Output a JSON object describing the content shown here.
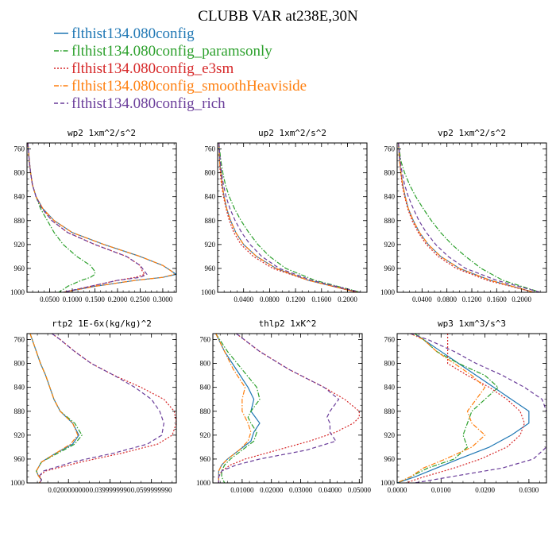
{
  "figure_title": "CLUBB VAR at238E,30N",
  "legend": [
    {
      "label": "flthist134.080config",
      "color": "#1f77b4",
      "dash": "solid"
    },
    {
      "label": "flthist134.080config_paramsonly",
      "color": "#2ca02c",
      "dash": "dashdot"
    },
    {
      "label": "flthist134.080config_e3sm",
      "color": "#d62728",
      "dash": "dotted"
    },
    {
      "label": "flthist134.080config_smoothHeaviside",
      "color": "#ff7f0e",
      "dash": "dashdot"
    },
    {
      "label": "flthist134.080config_rich",
      "color": "#6a3d9a",
      "dash": "dashed"
    }
  ],
  "chart_data": [
    {
      "type": "line",
      "title": "wp2  1xm^2/s^2",
      "xlim": [
        0,
        0.33
      ],
      "ylim": [
        1000,
        750
      ],
      "xticks": [
        0.05,
        0.1,
        0.15,
        0.2,
        0.25,
        0.3
      ],
      "xticklabels": [
        "0.0500",
        "0.1000",
        "0.1500",
        "0.2000",
        "0.2500",
        "0.3000"
      ],
      "yticks": [
        760,
        800,
        840,
        880,
        920,
        960,
        1000
      ],
      "yticklabels": [
        "760",
        "800",
        "840",
        "880",
        "920",
        "960",
        "1000"
      ],
      "y": [
        750,
        760,
        780,
        800,
        820,
        840,
        860,
        880,
        900,
        920,
        940,
        955,
        965,
        970,
        975,
        980,
        990,
        1000
      ],
      "series": [
        {
          "values": [
            0.002,
            0.003,
            0.005,
            0.008,
            0.012,
            0.02,
            0.035,
            0.06,
            0.1,
            0.17,
            0.25,
            0.3,
            0.32,
            0.33,
            0.3,
            0.24,
            0.15,
            0.08
          ]
        },
        {
          "values": [
            0.002,
            0.003,
            0.005,
            0.008,
            0.012,
            0.02,
            0.03,
            0.045,
            0.06,
            0.08,
            0.11,
            0.14,
            0.15,
            0.15,
            0.14,
            0.12,
            0.09,
            0.07
          ]
        },
        {
          "values": [
            0.002,
            0.003,
            0.005,
            0.008,
            0.012,
            0.02,
            0.035,
            0.055,
            0.09,
            0.15,
            0.22,
            0.25,
            0.255,
            0.26,
            0.24,
            0.2,
            0.14,
            0.08
          ]
        },
        {
          "values": [
            0.002,
            0.003,
            0.005,
            0.008,
            0.012,
            0.02,
            0.035,
            0.06,
            0.1,
            0.17,
            0.25,
            0.3,
            0.32,
            0.325,
            0.3,
            0.24,
            0.15,
            0.08
          ]
        },
        {
          "values": [
            0.002,
            0.003,
            0.005,
            0.008,
            0.012,
            0.02,
            0.033,
            0.055,
            0.09,
            0.15,
            0.22,
            0.25,
            0.26,
            0.265,
            0.25,
            0.2,
            0.14,
            0.08
          ]
        }
      ]
    },
    {
      "type": "line",
      "title": "up2  1xm^2/s^2",
      "xlim": [
        0,
        0.23
      ],
      "ylim": [
        1000,
        750
      ],
      "xticks": [
        0.04,
        0.08,
        0.12,
        0.16,
        0.2
      ],
      "xticklabels": [
        "0.0400",
        "0.0800",
        "0.1200",
        "0.1600",
        "0.2000"
      ],
      "yticks": [
        760,
        800,
        840,
        880,
        920,
        960,
        1000
      ],
      "yticklabels": [
        "760",
        "800",
        "840",
        "880",
        "920",
        "960",
        "1000"
      ],
      "y": [
        750,
        780,
        800,
        820,
        840,
        860,
        880,
        900,
        920,
        940,
        960,
        980,
        1000
      ],
      "series": [
        {
          "values": [
            0.002,
            0.003,
            0.005,
            0.007,
            0.01,
            0.014,
            0.02,
            0.028,
            0.04,
            0.06,
            0.09,
            0.14,
            0.215
          ]
        },
        {
          "values": [
            0.002,
            0.005,
            0.008,
            0.012,
            0.018,
            0.026,
            0.036,
            0.048,
            0.062,
            0.08,
            0.105,
            0.15,
            0.22
          ]
        },
        {
          "values": [
            0.002,
            0.003,
            0.004,
            0.006,
            0.009,
            0.013,
            0.018,
            0.025,
            0.036,
            0.055,
            0.085,
            0.14,
            0.215
          ]
        },
        {
          "values": [
            0.002,
            0.003,
            0.005,
            0.007,
            0.01,
            0.014,
            0.02,
            0.028,
            0.04,
            0.06,
            0.09,
            0.14,
            0.215
          ]
        },
        {
          "values": [
            0.002,
            0.004,
            0.006,
            0.009,
            0.013,
            0.019,
            0.027,
            0.037,
            0.05,
            0.068,
            0.095,
            0.145,
            0.22
          ]
        }
      ]
    },
    {
      "type": "line",
      "title": "vp2  1xm^2/s^2",
      "xlim": [
        0,
        0.24
      ],
      "ylim": [
        1000,
        750
      ],
      "xticks": [
        0.04,
        0.08,
        0.12,
        0.16,
        0.2
      ],
      "xticklabels": [
        "0.0400",
        "0.0800",
        "0.1200",
        "0.1600",
        "0.2000"
      ],
      "yticks": [
        760,
        800,
        840,
        880,
        920,
        960,
        1000
      ],
      "yticklabels": [
        "760",
        "800",
        "840",
        "880",
        "920",
        "960",
        "1000"
      ],
      "y": [
        750,
        780,
        800,
        820,
        840,
        860,
        880,
        900,
        920,
        940,
        960,
        980,
        1000
      ],
      "series": [
        {
          "values": [
            0.002,
            0.004,
            0.006,
            0.009,
            0.013,
            0.018,
            0.026,
            0.036,
            0.05,
            0.07,
            0.1,
            0.15,
            0.22
          ]
        },
        {
          "values": [
            0.002,
            0.006,
            0.012,
            0.02,
            0.03,
            0.042,
            0.055,
            0.07,
            0.088,
            0.11,
            0.135,
            0.17,
            0.23
          ]
        },
        {
          "values": [
            0.002,
            0.004,
            0.006,
            0.008,
            0.012,
            0.017,
            0.024,
            0.034,
            0.047,
            0.066,
            0.095,
            0.145,
            0.22
          ]
        },
        {
          "values": [
            0.002,
            0.004,
            0.006,
            0.009,
            0.013,
            0.018,
            0.026,
            0.036,
            0.05,
            0.07,
            0.1,
            0.15,
            0.22
          ]
        },
        {
          "values": [
            0.002,
            0.005,
            0.008,
            0.012,
            0.018,
            0.026,
            0.035,
            0.047,
            0.062,
            0.082,
            0.11,
            0.16,
            0.23
          ]
        }
      ]
    },
    {
      "type": "line",
      "title": "rtp2  1E-6x(kg/kg)^2",
      "xlim": [
        0,
        0.072
      ],
      "ylim": [
        1000,
        750
      ],
      "xticks": [
        0.02,
        0.04,
        0.06
      ],
      "xticklabels": [
        "0.0200000000",
        "0.0399999990",
        "0.0599999990"
      ],
      "yticks": [
        760,
        800,
        840,
        880,
        920,
        960,
        1000
      ],
      "yticklabels": [
        "760",
        "800",
        "840",
        "880",
        "920",
        "960",
        "1000"
      ],
      "y": [
        750,
        760,
        780,
        800,
        820,
        840,
        860,
        880,
        900,
        920,
        935,
        950,
        965,
        980,
        988,
        995,
        1000
      ],
      "series": [
        {
          "values": [
            0.0015,
            0.0025,
            0.0045,
            0.0065,
            0.009,
            0.011,
            0.013,
            0.016,
            0.022,
            0.025,
            0.022,
            0.014,
            0.007,
            0.0045,
            0.0055,
            0.007,
            0.006
          ]
        },
        {
          "values": [
            0.0015,
            0.0025,
            0.0045,
            0.0065,
            0.009,
            0.011,
            0.013,
            0.016,
            0.023,
            0.0265,
            0.023,
            0.015,
            0.007,
            0.0045,
            0.0055,
            0.007,
            0.006
          ]
        },
        {
          "values": [
            0.012,
            0.016,
            0.023,
            0.031,
            0.042,
            0.055,
            0.066,
            0.071,
            0.072,
            0.07,
            0.063,
            0.046,
            0.026,
            0.009,
            0.006,
            0.007,
            0.006
          ]
        },
        {
          "values": [
            0.0015,
            0.0025,
            0.0045,
            0.0065,
            0.009,
            0.011,
            0.013,
            0.016,
            0.022,
            0.0245,
            0.021,
            0.014,
            0.007,
            0.0045,
            0.0055,
            0.007,
            0.006
          ]
        },
        {
          "values": [
            0.012,
            0.016,
            0.023,
            0.031,
            0.042,
            0.052,
            0.06,
            0.064,
            0.066,
            0.065,
            0.058,
            0.042,
            0.022,
            0.008,
            0.006,
            0.007,
            0.006
          ]
        }
      ]
    },
    {
      "type": "line",
      "title": "thlp2  1xK^2",
      "xlim": [
        0,
        0.051
      ],
      "ylim": [
        1000,
        750
      ],
      "xticks": [
        0.01,
        0.02,
        0.03,
        0.04,
        0.05
      ],
      "xticklabels": [
        "0.01000",
        "0.02000",
        "0.03000",
        "0.04000",
        "0.05000"
      ],
      "yticks": [
        760,
        800,
        840,
        880,
        920,
        960,
        1000
      ],
      "yticklabels": [
        "760",
        "800",
        "840",
        "880",
        "920",
        "960",
        "1000"
      ],
      "y": [
        750,
        780,
        810,
        840,
        860,
        880,
        890,
        900,
        915,
        930,
        945,
        960,
        970,
        980,
        990,
        1000
      ],
      "series": [
        {
          "values": [
            0.001,
            0.004,
            0.008,
            0.012,
            0.014,
            0.013,
            0.0145,
            0.016,
            0.014,
            0.013,
            0.009,
            0.005,
            0.003,
            0.002,
            0.002,
            0.002
          ]
        },
        {
          "values": [
            0.001,
            0.005,
            0.01,
            0.015,
            0.016,
            0.013,
            0.012,
            0.013,
            0.015,
            0.014,
            0.01,
            0.006,
            0.004,
            0.003,
            0.003,
            0.004
          ]
        },
        {
          "values": [
            0.008,
            0.016,
            0.026,
            0.038,
            0.045,
            0.05,
            0.05,
            0.048,
            0.042,
            0.033,
            0.022,
            0.011,
            0.006,
            0.003,
            0.002,
            0.002
          ]
        },
        {
          "values": [
            0.001,
            0.004,
            0.007,
            0.011,
            0.01,
            0.01,
            0.011,
            0.012,
            0.013,
            0.012,
            0.009,
            0.005,
            0.003,
            0.002,
            0.002,
            0.002
          ]
        },
        {
          "values": [
            0.008,
            0.016,
            0.026,
            0.038,
            0.043,
            0.04,
            0.039,
            0.04,
            0.04,
            0.042,
            0.032,
            0.016,
            0.008,
            0.003,
            0.002,
            0.002
          ]
        }
      ]
    },
    {
      "type": "line",
      "title": "wp3  1xm^3/s^3",
      "xlim": [
        0,
        0.034
      ],
      "ylim": [
        1000,
        750
      ],
      "xticks": [
        0,
        0.01,
        0.02,
        0.03
      ],
      "xticklabels": [
        "0.0000",
        "0.0100",
        "0.0200",
        "0.0300"
      ],
      "yticks": [
        760,
        800,
        840,
        880,
        920,
        960,
        1000
      ],
      "yticklabels": [
        "760",
        "800",
        "840",
        "880",
        "920",
        "960",
        "1000"
      ],
      "y": [
        750,
        760,
        780,
        800,
        820,
        840,
        860,
        880,
        900,
        920,
        940,
        960,
        975,
        990,
        1000
      ],
      "series": [
        {
          "values": [
            0.004,
            0.006,
            0.01,
            0.014,
            0.018,
            0.022,
            0.026,
            0.03,
            0.03,
            0.026,
            0.021,
            0.014,
            0.009,
            0.004,
            0.0
          ]
        },
        {
          "values": [
            0.004,
            0.006,
            0.009,
            0.014,
            0.02,
            0.023,
            0.02,
            0.017,
            0.016,
            0.015,
            0.016,
            0.013,
            0.007,
            0.003,
            0.0
          ]
        },
        {
          "values": [
            0.0115,
            0.0115,
            0.0115,
            0.0115,
            0.016,
            0.021,
            0.025,
            0.028,
            0.029,
            0.028,
            0.025,
            0.019,
            0.013,
            0.006,
            0.002
          ]
        },
        {
          "values": [
            0.003,
            0.006,
            0.009,
            0.013,
            0.017,
            0.02,
            0.018,
            0.016,
            0.017,
            0.02,
            0.017,
            0.011,
            0.006,
            0.003,
            0.0
          ]
        },
        {
          "values": [
            0.003,
            0.007,
            0.013,
            0.018,
            0.024,
            0.029,
            0.033,
            0.034,
            0.034,
            0.034,
            0.034,
            0.031,
            0.024,
            0.012,
            0.004
          ]
        }
      ]
    }
  ]
}
